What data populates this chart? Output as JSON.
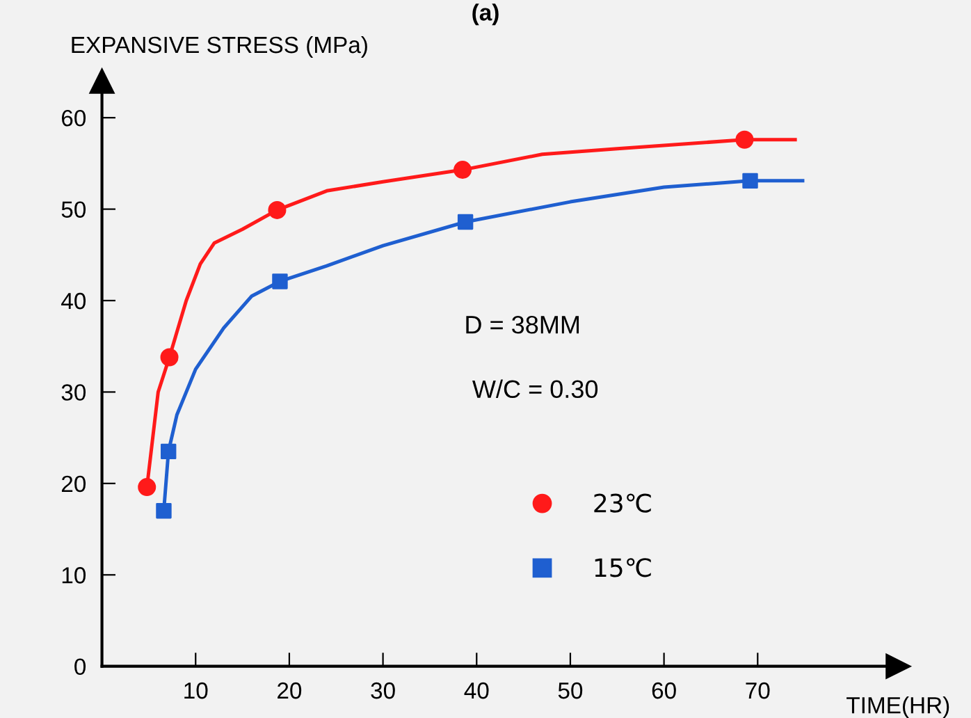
{
  "chart_data": {
    "type": "line",
    "title": "(a)",
    "ylabel": "EXPANSIVE STRESS (MPa)",
    "xlabel": "TIME(HR)",
    "xlim": [
      0,
      85
    ],
    "ylim": [
      0,
      64
    ],
    "xticks": [
      10,
      20,
      30,
      40,
      50,
      60,
      70
    ],
    "yticks": [
      0,
      10,
      20,
      30,
      40,
      50,
      60
    ],
    "grid": false,
    "legend": "right",
    "annotations": [
      "D = 38MM",
      "W/C = 0.30"
    ],
    "series": [
      {
        "color": "#ff1a1a",
        "marker": "none",
        "x": [
          4.8,
          6,
          7.2,
          9,
          10.5,
          12,
          15,
          18.7,
          24,
          30,
          38.5,
          47,
          55,
          68.6,
          74
        ],
        "values": [
          19.6,
          30,
          33.8,
          40,
          44,
          46.3,
          47.8,
          49.9,
          52,
          53,
          54.3,
          56,
          56.6,
          57.6,
          57.6
        ]
      },
      {
        "color": "#1f5fd0",
        "marker": "none",
        "x": [
          6.6,
          7.1,
          8,
          10,
          13,
          16,
          19,
          24,
          30,
          38.8,
          50,
          60,
          69.2,
          74.8
        ],
        "values": [
          17.0,
          23.5,
          27.5,
          32.5,
          37,
          40.5,
          42.1,
          43.8,
          46,
          48.6,
          50.8,
          52.4,
          53.1,
          53.1
        ]
      },
      {
        "type": "scatter",
        "name": "23℃",
        "color": "#ff1a1a",
        "marker": "circle",
        "x": [
          4.8,
          7.2,
          18.7,
          38.5,
          68.6
        ],
        "values": [
          19.6,
          33.8,
          49.9,
          54.3,
          57.6
        ]
      },
      {
        "type": "scatter",
        "name": "15℃",
        "color": "#1f5fd0",
        "marker": "square",
        "x": [
          6.6,
          7.1,
          19.0,
          38.8,
          69.2
        ],
        "values": [
          17.0,
          23.5,
          42.1,
          48.6,
          53.1
        ]
      }
    ]
  }
}
